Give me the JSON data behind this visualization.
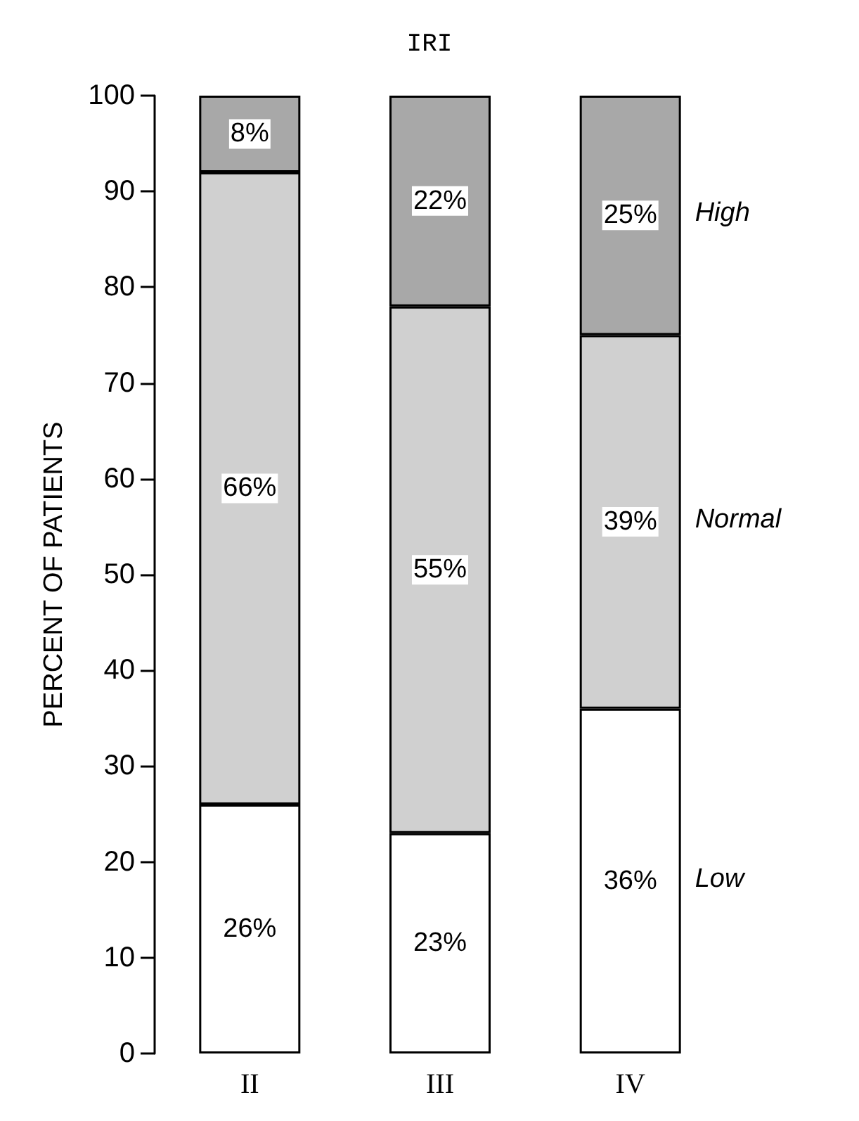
{
  "chart_data": {
    "type": "bar",
    "title": "IRI",
    "ylabel": "PERCENT OF PATIENTS",
    "categories": [
      "II",
      "III",
      "IV"
    ],
    "stacked": true,
    "legend": false,
    "grid": false,
    "series": [
      {
        "name": "Low",
        "color": "#ffffff",
        "values": [
          26,
          23,
          36
        ],
        "value_labels": [
          "26%",
          "23%",
          "36%"
        ]
      },
      {
        "name": "Normal",
        "color": "#d0d0d0",
        "values": [
          66,
          55,
          39
        ],
        "value_labels": [
          "66%",
          "55%",
          "39%"
        ]
      },
      {
        "name": "High",
        "color": "#a8a8a8",
        "values": [
          8,
          22,
          25
        ],
        "value_labels": [
          "8%",
          "22%",
          "25%"
        ]
      }
    ],
    "ylim": [
      0,
      100
    ],
    "yticks": [
      0,
      10,
      20,
      30,
      40,
      50,
      60,
      70,
      80,
      90,
      100
    ]
  }
}
